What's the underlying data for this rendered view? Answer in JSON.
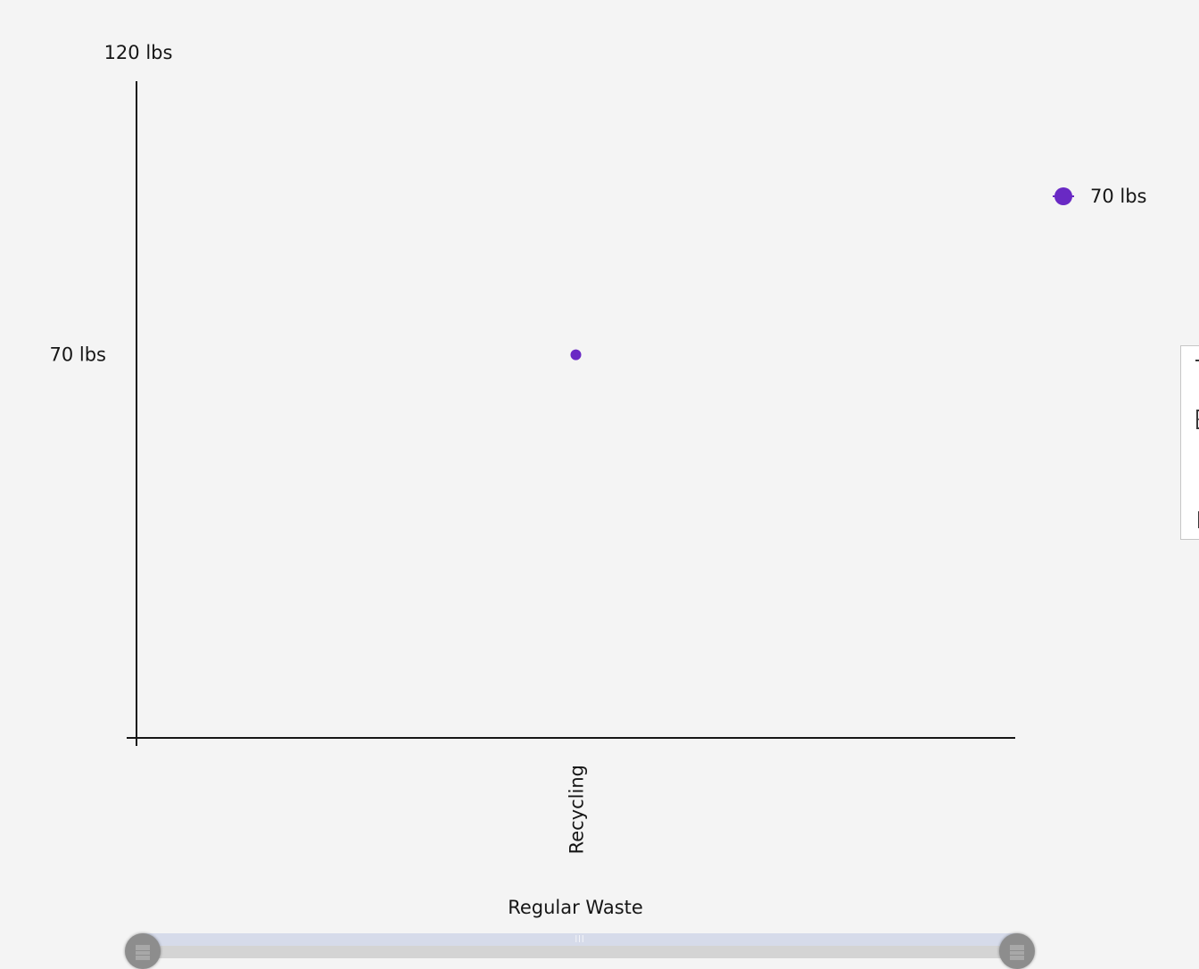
{
  "chart_data": {
    "type": "scatter",
    "title": "",
    "xlabel": "Regular Waste",
    "ylabel": "",
    "categories": [
      "Recycling"
    ],
    "series": [
      {
        "name": "70 lbs",
        "color": "#6929c4",
        "points": [
          {
            "x": "Recycling",
            "y": 70
          }
        ]
      }
    ],
    "y_ticks": [
      {
        "value": 70,
        "label": "70 lbs"
      },
      {
        "value": 120,
        "label": "120 lbs"
      }
    ],
    "ylim": [
      0,
      120
    ],
    "grid": false,
    "legend_position": "right"
  },
  "zoom_slider": {
    "range_start": 0,
    "range_end": 1
  },
  "toolbox": {
    "icons": [
      "zoom-icon",
      "zoom-reset-icon",
      "restore-icon",
      "save-image-icon"
    ]
  }
}
